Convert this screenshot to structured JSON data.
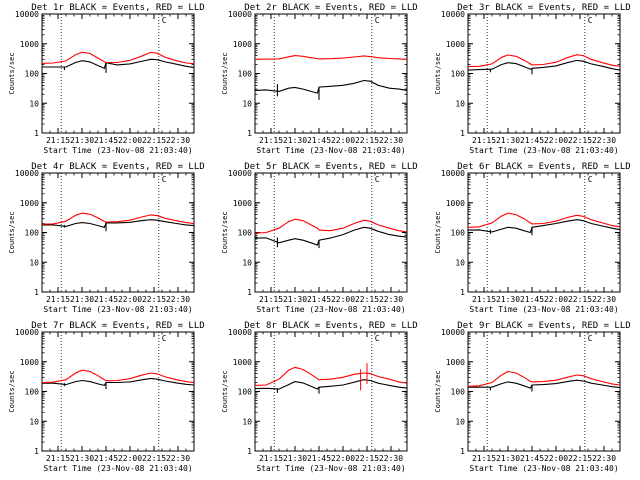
{
  "colors": {
    "events": "#000000",
    "lld": "#ff0000",
    "axes": "#000000",
    "background": "#ffffff"
  },
  "chart_data": [
    {
      "type": "line",
      "id": 1,
      "log_scale": true,
      "title": "Det 1r BLACK = Events, RED = LLD",
      "xlabel": "Start Time (23-Nov-08 21:03:40)",
      "ylabel": "Counts/sec",
      "xlim": [
        "21:05",
        "22:40"
      ],
      "ylim": [
        1,
        10000
      ],
      "x_ticks": [
        "21:15",
        "21:30",
        "21:45",
        "22:00",
        "22:15",
        "22:30"
      ],
      "y_ticks": [
        "1",
        "10",
        "100",
        "1000",
        "10000"
      ],
      "vlines": [
        "21:17",
        "22:18"
      ],
      "marker_label": "C",
      "x": [
        "21:05",
        "21:12",
        "21:20",
        "21:26",
        "21:30",
        "21:35",
        "21:40",
        "21:44",
        "21:45",
        "21:52",
        "22:00",
        "22:07",
        "22:13",
        "22:17",
        "22:22",
        "22:29",
        "22:35",
        "22:40"
      ],
      "series": [
        {
          "name": "BLACK = Events",
          "color": "#000000",
          "values": [
            165,
            165,
            165,
            235,
            270,
            245,
            185,
            150,
            230,
            195,
            210,
            255,
            300,
            290,
            245,
            205,
            175,
            160
          ],
          "steps": [
            [
              "21:19",
              165,
              130
            ],
            [
              "21:45",
              105,
              220
            ]
          ]
        },
        {
          "name": "RED = LLD",
          "color": "#ff0000",
          "values": [
            220,
            225,
            265,
            430,
            520,
            470,
            330,
            250,
            235,
            235,
            275,
            380,
            510,
            480,
            350,
            270,
            225,
            215
          ]
        }
      ]
    },
    {
      "type": "line",
      "id": 2,
      "log_scale": true,
      "title": "Det 2r BLACK = Events, RED = LLD",
      "xlabel": "Start Time (23-Nov-08 21:03:40)",
      "ylabel": "Counts/sec",
      "xlim": [
        "21:05",
        "22:40"
      ],
      "ylim": [
        1,
        10000
      ],
      "x_ticks": [
        "21:15",
        "21:30",
        "21:45",
        "22:00",
        "22:15",
        "22:30"
      ],
      "y_ticks": [
        "1",
        "10",
        "100",
        "1000",
        "10000"
      ],
      "vlines": [
        "21:17",
        "22:18"
      ],
      "marker_label": "C",
      "x": [
        "21:05",
        "21:12",
        "21:20",
        "21:26",
        "21:30",
        "21:35",
        "21:40",
        "21:44",
        "21:45",
        "21:52",
        "22:00",
        "22:07",
        "22:13",
        "22:17",
        "22:22",
        "22:29",
        "22:35",
        "22:40"
      ],
      "series": [
        {
          "name": "BLACK = Events",
          "color": "#000000",
          "values": [
            27,
            28,
            25,
            32,
            34,
            30,
            25,
            22,
            35,
            37,
            40,
            47,
            58,
            55,
            40,
            32,
            30,
            27
          ],
          "steps": [
            [
              "21:19",
              44,
              17
            ],
            [
              "21:45",
              13,
              35
            ]
          ]
        },
        {
          "name": "RED = LLD",
          "color": "#ff0000",
          "values": [
            300,
            305,
            310,
            365,
            400,
            380,
            340,
            320,
            310,
            315,
            330,
            360,
            390,
            370,
            340,
            320,
            310,
            300
          ]
        }
      ]
    },
    {
      "type": "line",
      "id": 3,
      "log_scale": true,
      "title": "Det 3r BLACK = Events, RED = LLD",
      "xlabel": "Start Time (23-Nov-08 21:03:40)",
      "ylabel": "Counts/sec",
      "xlim": [
        "21:05",
        "22:40"
      ],
      "ylim": [
        1,
        10000
      ],
      "x_ticks": [
        "21:15",
        "21:30",
        "21:45",
        "22:00",
        "22:15",
        "22:30"
      ],
      "y_ticks": [
        "1",
        "10",
        "100",
        "1000",
        "10000"
      ],
      "vlines": [
        "21:17",
        "22:18"
      ],
      "marker_label": "C",
      "x": [
        "21:05",
        "21:12",
        "21:20",
        "21:26",
        "21:30",
        "21:35",
        "21:40",
        "21:44",
        "21:45",
        "21:52",
        "22:00",
        "22:07",
        "22:13",
        "22:17",
        "22:22",
        "22:29",
        "22:35",
        "22:40"
      ],
      "series": [
        {
          "name": "BLACK = Events",
          "color": "#000000",
          "values": [
            130,
            135,
            140,
            200,
            230,
            215,
            170,
            140,
            150,
            160,
            180,
            230,
            275,
            260,
            210,
            175,
            145,
            130
          ],
          "steps": [
            [
              "21:19",
              140,
              110
            ],
            [
              "21:45",
              95,
              150
            ]
          ]
        },
        {
          "name": "RED = LLD",
          "color": "#ff0000",
          "values": [
            170,
            175,
            210,
            350,
            420,
            380,
            280,
            210,
            195,
            200,
            240,
            340,
            430,
            400,
            300,
            230,
            190,
            175
          ]
        }
      ]
    },
    {
      "type": "line",
      "id": 4,
      "log_scale": true,
      "title": "Det 4r BLACK = Events, RED = LLD",
      "xlabel": "Start Time (23-Nov-08 21:03:40)",
      "ylabel": "Counts/sec",
      "xlim": [
        "21:05",
        "22:40"
      ],
      "ylim": [
        1,
        10000
      ],
      "x_ticks": [
        "21:15",
        "21:30",
        "21:45",
        "22:00",
        "22:15",
        "22:30"
      ],
      "y_ticks": [
        "1",
        "10",
        "100",
        "1000",
        "10000"
      ],
      "vlines": [
        "21:17",
        "22:18"
      ],
      "marker_label": "C",
      "x": [
        "21:05",
        "21:12",
        "21:20",
        "21:26",
        "21:30",
        "21:35",
        "21:40",
        "21:44",
        "21:45",
        "21:52",
        "22:00",
        "22:07",
        "22:13",
        "22:17",
        "22:22",
        "22:29",
        "22:35",
        "22:40"
      ],
      "series": [
        {
          "name": "BLACK = Events",
          "color": "#000000",
          "values": [
            180,
            180,
            160,
            200,
            215,
            200,
            170,
            150,
            210,
            210,
            220,
            250,
            270,
            260,
            230,
            200,
            180,
            170
          ],
          "steps": [
            [
              "21:19",
              180,
              145
            ],
            [
              "21:45",
              110,
              210
            ]
          ]
        },
        {
          "name": "RED = LLD",
          "color": "#ff0000",
          "values": [
            190,
            195,
            240,
            380,
            450,
            410,
            310,
            235,
            225,
            230,
            260,
            330,
            390,
            370,
            300,
            250,
            215,
            200
          ]
        }
      ]
    },
    {
      "type": "line",
      "id": 5,
      "log_scale": true,
      "title": "Det 5r BLACK = Events, RED = LLD",
      "xlabel": "Start Time (23-Nov-08 21:03:40)",
      "ylabel": "Counts/sec",
      "xlim": [
        "21:05",
        "22:40"
      ],
      "ylim": [
        1,
        10000
      ],
      "x_ticks": [
        "21:15",
        "21:30",
        "21:45",
        "22:00",
        "22:15",
        "22:30"
      ],
      "y_ticks": [
        "1",
        "10",
        "100",
        "1000",
        "10000"
      ],
      "vlines": [
        "21:17",
        "22:18"
      ],
      "marker_label": "C",
      "x": [
        "21:05",
        "21:12",
        "21:20",
        "21:26",
        "21:30",
        "21:35",
        "21:40",
        "21:44",
        "21:45",
        "21:52",
        "22:00",
        "22:07",
        "22:13",
        "22:17",
        "22:22",
        "22:29",
        "22:35",
        "22:40"
      ],
      "series": [
        {
          "name": "BLACK = Events",
          "color": "#000000",
          "values": [
            65,
            66,
            45,
            55,
            62,
            55,
            45,
            38,
            55,
            65,
            85,
            120,
            150,
            140,
            110,
            85,
            75,
            70
          ],
          "steps": [
            [
              "21:19",
              68,
              32
            ],
            [
              "21:45",
              30,
              55
            ]
          ]
        },
        {
          "name": "RED = LLD",
          "color": "#ff0000",
          "values": [
            95,
            100,
            140,
            230,
            280,
            250,
            180,
            140,
            120,
            115,
            140,
            200,
            260,
            240,
            180,
            140,
            115,
            105
          ]
        }
      ]
    },
    {
      "type": "line",
      "id": 6,
      "log_scale": true,
      "title": "Det 6r BLACK = Events, RED = LLD",
      "xlabel": "Start Time (23-Nov-08 21:03:40)",
      "ylabel": "Counts/sec",
      "xlim": [
        "21:05",
        "22:40"
      ],
      "ylim": [
        1,
        10000
      ],
      "x_ticks": [
        "21:15",
        "21:30",
        "21:45",
        "22:00",
        "22:15",
        "22:30"
      ],
      "y_ticks": [
        "1",
        "10",
        "100",
        "1000",
        "10000"
      ],
      "vlines": [
        "21:17",
        "22:18"
      ],
      "marker_label": "C",
      "x": [
        "21:05",
        "21:12",
        "21:20",
        "21:26",
        "21:30",
        "21:35",
        "21:40",
        "21:44",
        "21:45",
        "21:52",
        "22:00",
        "22:07",
        "22:13",
        "22:17",
        "22:22",
        "22:29",
        "22:35",
        "22:40"
      ],
      "series": [
        {
          "name": "BLACK = Events",
          "color": "#000000",
          "values": [
            120,
            122,
            105,
            130,
            150,
            140,
            115,
            100,
            150,
            170,
            200,
            240,
            270,
            250,
            200,
            165,
            140,
            125
          ],
          "steps": [
            [
              "21:19",
              125,
              90
            ],
            [
              "21:45",
              80,
              150
            ]
          ]
        },
        {
          "name": "RED = LLD",
          "color": "#ff0000",
          "values": [
            150,
            155,
            210,
            360,
            450,
            400,
            290,
            210,
            195,
            200,
            240,
            320,
            380,
            350,
            270,
            210,
            170,
            155
          ]
        }
      ]
    },
    {
      "type": "line",
      "id": 7,
      "log_scale": true,
      "title": "Det 7r BLACK = Events, RED = LLD",
      "xlabel": "Start Time (23-Nov-08 21:03:40)",
      "ylabel": "Counts/sec",
      "xlim": [
        "21:05",
        "22:40"
      ],
      "ylim": [
        1,
        10000
      ],
      "x_ticks": [
        "21:15",
        "21:30",
        "21:45",
        "22:00",
        "22:15",
        "22:30"
      ],
      "y_ticks": [
        "1",
        "10",
        "100",
        "1000",
        "10000"
      ],
      "vlines": [
        "21:17",
        "22:18"
      ],
      "marker_label": "C",
      "x": [
        "21:05",
        "21:12",
        "21:20",
        "21:26",
        "21:30",
        "21:35",
        "21:40",
        "21:44",
        "21:45",
        "21:52",
        "22:00",
        "22:07",
        "22:13",
        "22:17",
        "22:22",
        "22:29",
        "22:35",
        "22:40"
      ],
      "series": [
        {
          "name": "BLACK = Events",
          "color": "#000000",
          "values": [
            190,
            190,
            170,
            215,
            235,
            215,
            180,
            160,
            200,
            200,
            210,
            245,
            275,
            260,
            225,
            195,
            175,
            165
          ],
          "steps": [
            [
              "21:19",
              190,
              150
            ],
            [
              "21:45",
              120,
              200
            ]
          ]
        },
        {
          "name": "RED = LLD",
          "color": "#ff0000",
          "values": [
            200,
            205,
            250,
            420,
            520,
            470,
            340,
            250,
            230,
            235,
            270,
            350,
            420,
            390,
            310,
            250,
            215,
            200
          ]
        }
      ]
    },
    {
      "type": "line",
      "id": 8,
      "log_scale": true,
      "title": "Det 8r BLACK = Events, RED = LLD",
      "xlabel": "Start Time (23-Nov-08 21:03:40)",
      "ylabel": "Counts/sec",
      "xlim": [
        "21:05",
        "22:40"
      ],
      "ylim": [
        1,
        10000
      ],
      "x_ticks": [
        "21:15",
        "21:30",
        "21:45",
        "22:00",
        "22:15",
        "22:30"
      ],
      "y_ticks": [
        "1",
        "10",
        "100",
        "1000",
        "10000"
      ],
      "vlines": [
        "21:17",
        "22:18"
      ],
      "marker_label": "C",
      "x": [
        "21:05",
        "21:12",
        "21:20",
        "21:26",
        "21:30",
        "21:35",
        "21:40",
        "21:44",
        "21:45",
        "21:52",
        "22:00",
        "22:07",
        "22:13",
        "22:17",
        "22:22",
        "22:29",
        "22:35",
        "22:40"
      ],
      "series": [
        {
          "name": "BLACK = Events",
          "color": "#000000",
          "values": [
            125,
            128,
            120,
            170,
            215,
            195,
            150,
            120,
            140,
            150,
            165,
            205,
            250,
            235,
            190,
            160,
            140,
            130
          ],
          "steps": [
            [
              "21:19",
              130,
              90
            ],
            [
              "21:45",
              85,
              140
            ]
          ]
        },
        {
          "name": "RED = LLD",
          "color": "#ff0000",
          "values": [
            160,
            165,
            260,
            520,
            650,
            550,
            380,
            270,
            250,
            260,
            300,
            380,
            420,
            400,
            320,
            260,
            210,
            190
          ],
          "spikes": [
            [
              "22:11",
              560,
              110
            ],
            [
              "22:15",
              900,
              180
            ]
          ]
        }
      ]
    },
    {
      "type": "line",
      "id": 9,
      "log_scale": true,
      "title": "Det 9r BLACK = Events, RED = LLD",
      "xlabel": "Start Time (23-Nov-08 21:03:40)",
      "ylabel": "Counts/sec",
      "xlim": [
        "21:05",
        "22:40"
      ],
      "ylim": [
        1,
        10000
      ],
      "x_ticks": [
        "21:15",
        "21:30",
        "21:45",
        "22:00",
        "22:15",
        "22:30"
      ],
      "y_ticks": [
        "1",
        "10",
        "100",
        "1000",
        "10000"
      ],
      "vlines": [
        "21:17",
        "22:18"
      ],
      "marker_label": "C",
      "x": [
        "21:05",
        "21:12",
        "21:20",
        "21:26",
        "21:30",
        "21:35",
        "21:40",
        "21:44",
        "21:45",
        "21:52",
        "22:00",
        "22:07",
        "22:13",
        "22:17",
        "22:22",
        "22:29",
        "22:35",
        "22:40"
      ],
      "series": [
        {
          "name": "BLACK = Events",
          "color": "#000000",
          "values": [
            140,
            140,
            140,
            185,
            210,
            190,
            155,
            130,
            165,
            170,
            185,
            215,
            240,
            225,
            190,
            165,
            145,
            135
          ],
          "steps": [
            [
              "21:19",
              140,
              110
            ],
            [
              "21:45",
              100,
              165
            ]
          ]
        },
        {
          "name": "RED = LLD",
          "color": "#ff0000",
          "values": [
            150,
            155,
            200,
            360,
            470,
            420,
            300,
            220,
            210,
            215,
            240,
            300,
            360,
            340,
            270,
            215,
            180,
            165
          ]
        }
      ]
    }
  ]
}
